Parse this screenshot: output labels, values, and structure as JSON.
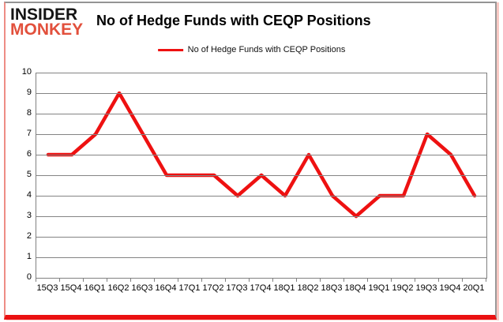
{
  "logo": {
    "line1": "INSIDER",
    "line2": "MONKEY",
    "accent_color": "#e2503c"
  },
  "title": "No of Hedge Funds with CEQP Positions",
  "legend": {
    "label": "No of Hedge Funds with CEQP Positions"
  },
  "chart_data": {
    "type": "line",
    "title": "No of Hedge Funds with CEQP Positions",
    "series_name": "No of Hedge Funds with CEQP Positions",
    "categories": [
      "15Q3",
      "15Q4",
      "16Q1",
      "16Q2",
      "16Q3",
      "16Q4",
      "17Q1",
      "17Q2",
      "17Q3",
      "17Q4",
      "18Q1",
      "18Q2",
      "18Q3",
      "18Q4",
      "19Q1",
      "19Q2",
      "19Q3",
      "19Q4",
      "20Q1"
    ],
    "values": [
      6,
      6,
      7,
      9,
      7,
      5,
      5,
      5,
      4,
      5,
      4,
      6,
      4,
      3,
      4,
      4,
      7,
      6,
      4
    ],
    "xlabel": "",
    "ylabel": "",
    "ylim": [
      0,
      10
    ],
    "y_ticks": [
      0,
      1,
      2,
      3,
      4,
      5,
      6,
      7,
      8,
      9,
      10
    ],
    "grid": true,
    "legend_position": "top-center",
    "line_color": "#ee1111",
    "grid_color": "#848484"
  }
}
